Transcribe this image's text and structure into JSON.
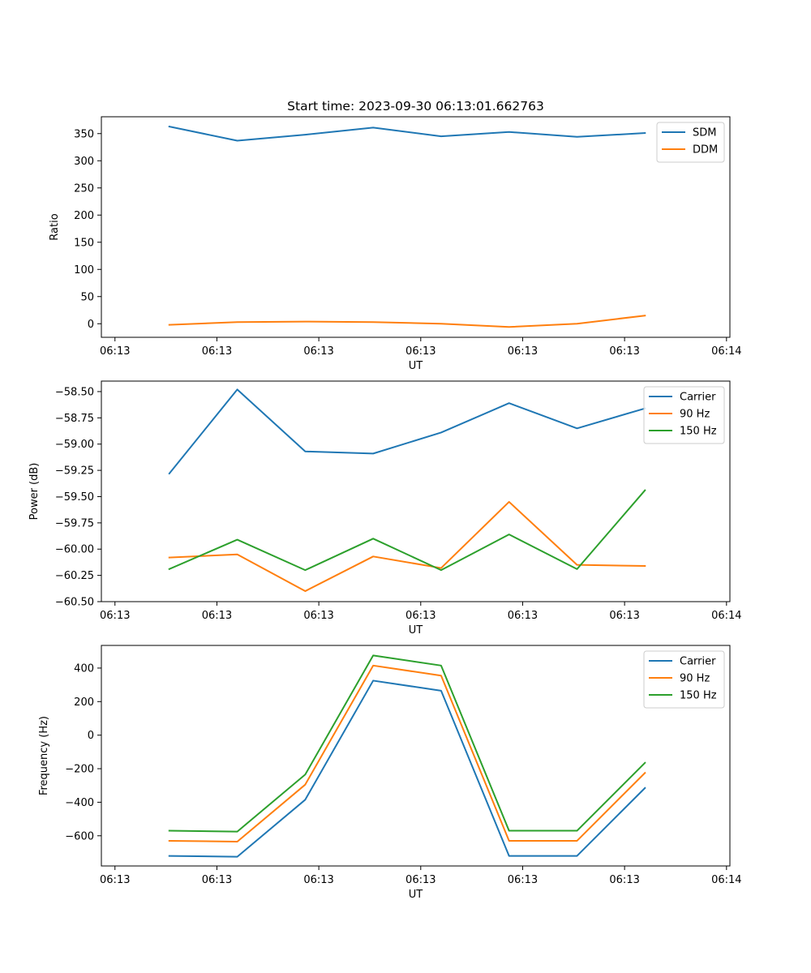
{
  "figure": {
    "title": "Start time: 2023-09-30 06:13:01.662763"
  },
  "chart_data": [
    {
      "type": "line",
      "title": "Start time: 2023-09-30 06:13:01.662763",
      "xlabel": "UT",
      "ylabel": "Ratio",
      "x": [
        1,
        2,
        3,
        4,
        5,
        6,
        7,
        8
      ],
      "xlim": [
        0,
        9.25
      ],
      "x_ticks": [
        0.2,
        1.7,
        3.2,
        4.7,
        6.2,
        7.7,
        9.2
      ],
      "x_tick_labels": [
        "06:13",
        "06:13",
        "06:13",
        "06:13",
        "06:13",
        "06:13",
        "06:14"
      ],
      "ylim": [
        -25,
        381
      ],
      "y_ticks": [
        0,
        50,
        100,
        150,
        200,
        250,
        300,
        350
      ],
      "y_tick_labels": [
        "0",
        "50",
        "100",
        "150",
        "200",
        "250",
        "300",
        "350"
      ],
      "legend_position": "top-right",
      "series": [
        {
          "name": "SDM",
          "color": "#1f77b4",
          "values": [
            363,
            337,
            348,
            361,
            345,
            353,
            344,
            351
          ]
        },
        {
          "name": "DDM",
          "color": "#ff7f0e",
          "values": [
            -2,
            3,
            4,
            3,
            0,
            -6,
            0,
            15
          ]
        }
      ]
    },
    {
      "type": "line",
      "xlabel": "UT",
      "ylabel": "Power (dB)",
      "x": [
        1,
        2,
        3,
        4,
        5,
        6,
        7,
        8
      ],
      "xlim": [
        0,
        9.25
      ],
      "x_ticks": [
        0.2,
        1.7,
        3.2,
        4.7,
        6.2,
        7.7,
        9.2
      ],
      "x_tick_labels": [
        "06:13",
        "06:13",
        "06:13",
        "06:13",
        "06:13",
        "06:13",
        "06:14"
      ],
      "ylim": [
        -60.5,
        -58.4
      ],
      "y_ticks": [
        -60.5,
        -60.25,
        -60.0,
        -59.75,
        -59.5,
        -59.25,
        -59.0,
        -58.75,
        -58.5
      ],
      "y_tick_labels": [
        "−60.50",
        "−60.25",
        "−60.00",
        "−59.75",
        "−59.50",
        "−59.25",
        "−59.00",
        "−58.75",
        "−58.50"
      ],
      "legend_position": "top-right",
      "series": [
        {
          "name": "Carrier",
          "color": "#1f77b4",
          "values": [
            -59.28,
            -58.48,
            -59.07,
            -59.09,
            -58.89,
            -58.61,
            -58.85,
            -58.66
          ]
        },
        {
          "name": "90 Hz",
          "color": "#ff7f0e",
          "values": [
            -60.08,
            -60.05,
            -60.4,
            -60.07,
            -60.18,
            -59.55,
            -60.15,
            -60.16
          ]
        },
        {
          "name": "150 Hz",
          "color": "#2ca02c",
          "values": [
            -60.19,
            -59.91,
            -60.2,
            -59.9,
            -60.2,
            -59.86,
            -60.19,
            -59.44
          ]
        }
      ]
    },
    {
      "type": "line",
      "xlabel": "UT",
      "ylabel": "Frequency (Hz)",
      "x": [
        1,
        2,
        3,
        4,
        5,
        6,
        7,
        8
      ],
      "xlim": [
        0,
        9.25
      ],
      "x_ticks": [
        0.2,
        1.7,
        3.2,
        4.7,
        6.2,
        7.7,
        9.2
      ],
      "x_tick_labels": [
        "06:13",
        "06:13",
        "06:13",
        "06:13",
        "06:13",
        "06:13",
        "06:14"
      ],
      "ylim": [
        -780,
        535
      ],
      "y_ticks": [
        -600,
        -400,
        -200,
        0,
        200,
        400
      ],
      "y_tick_labels": [
        "−600",
        "−400",
        "−200",
        "0",
        "200",
        "400"
      ],
      "legend_position": "top-right",
      "series": [
        {
          "name": "Carrier",
          "color": "#1f77b4",
          "values": [
            -720,
            -725,
            -385,
            325,
            265,
            -720,
            -720,
            -315
          ]
        },
        {
          "name": "90 Hz",
          "color": "#ff7f0e",
          "values": [
            -630,
            -635,
            -295,
            415,
            355,
            -630,
            -630,
            -225
          ]
        },
        {
          "name": "150 Hz",
          "color": "#2ca02c",
          "values": [
            -570,
            -575,
            -235,
            475,
            415,
            -570,
            -570,
            -165
          ]
        }
      ]
    }
  ]
}
